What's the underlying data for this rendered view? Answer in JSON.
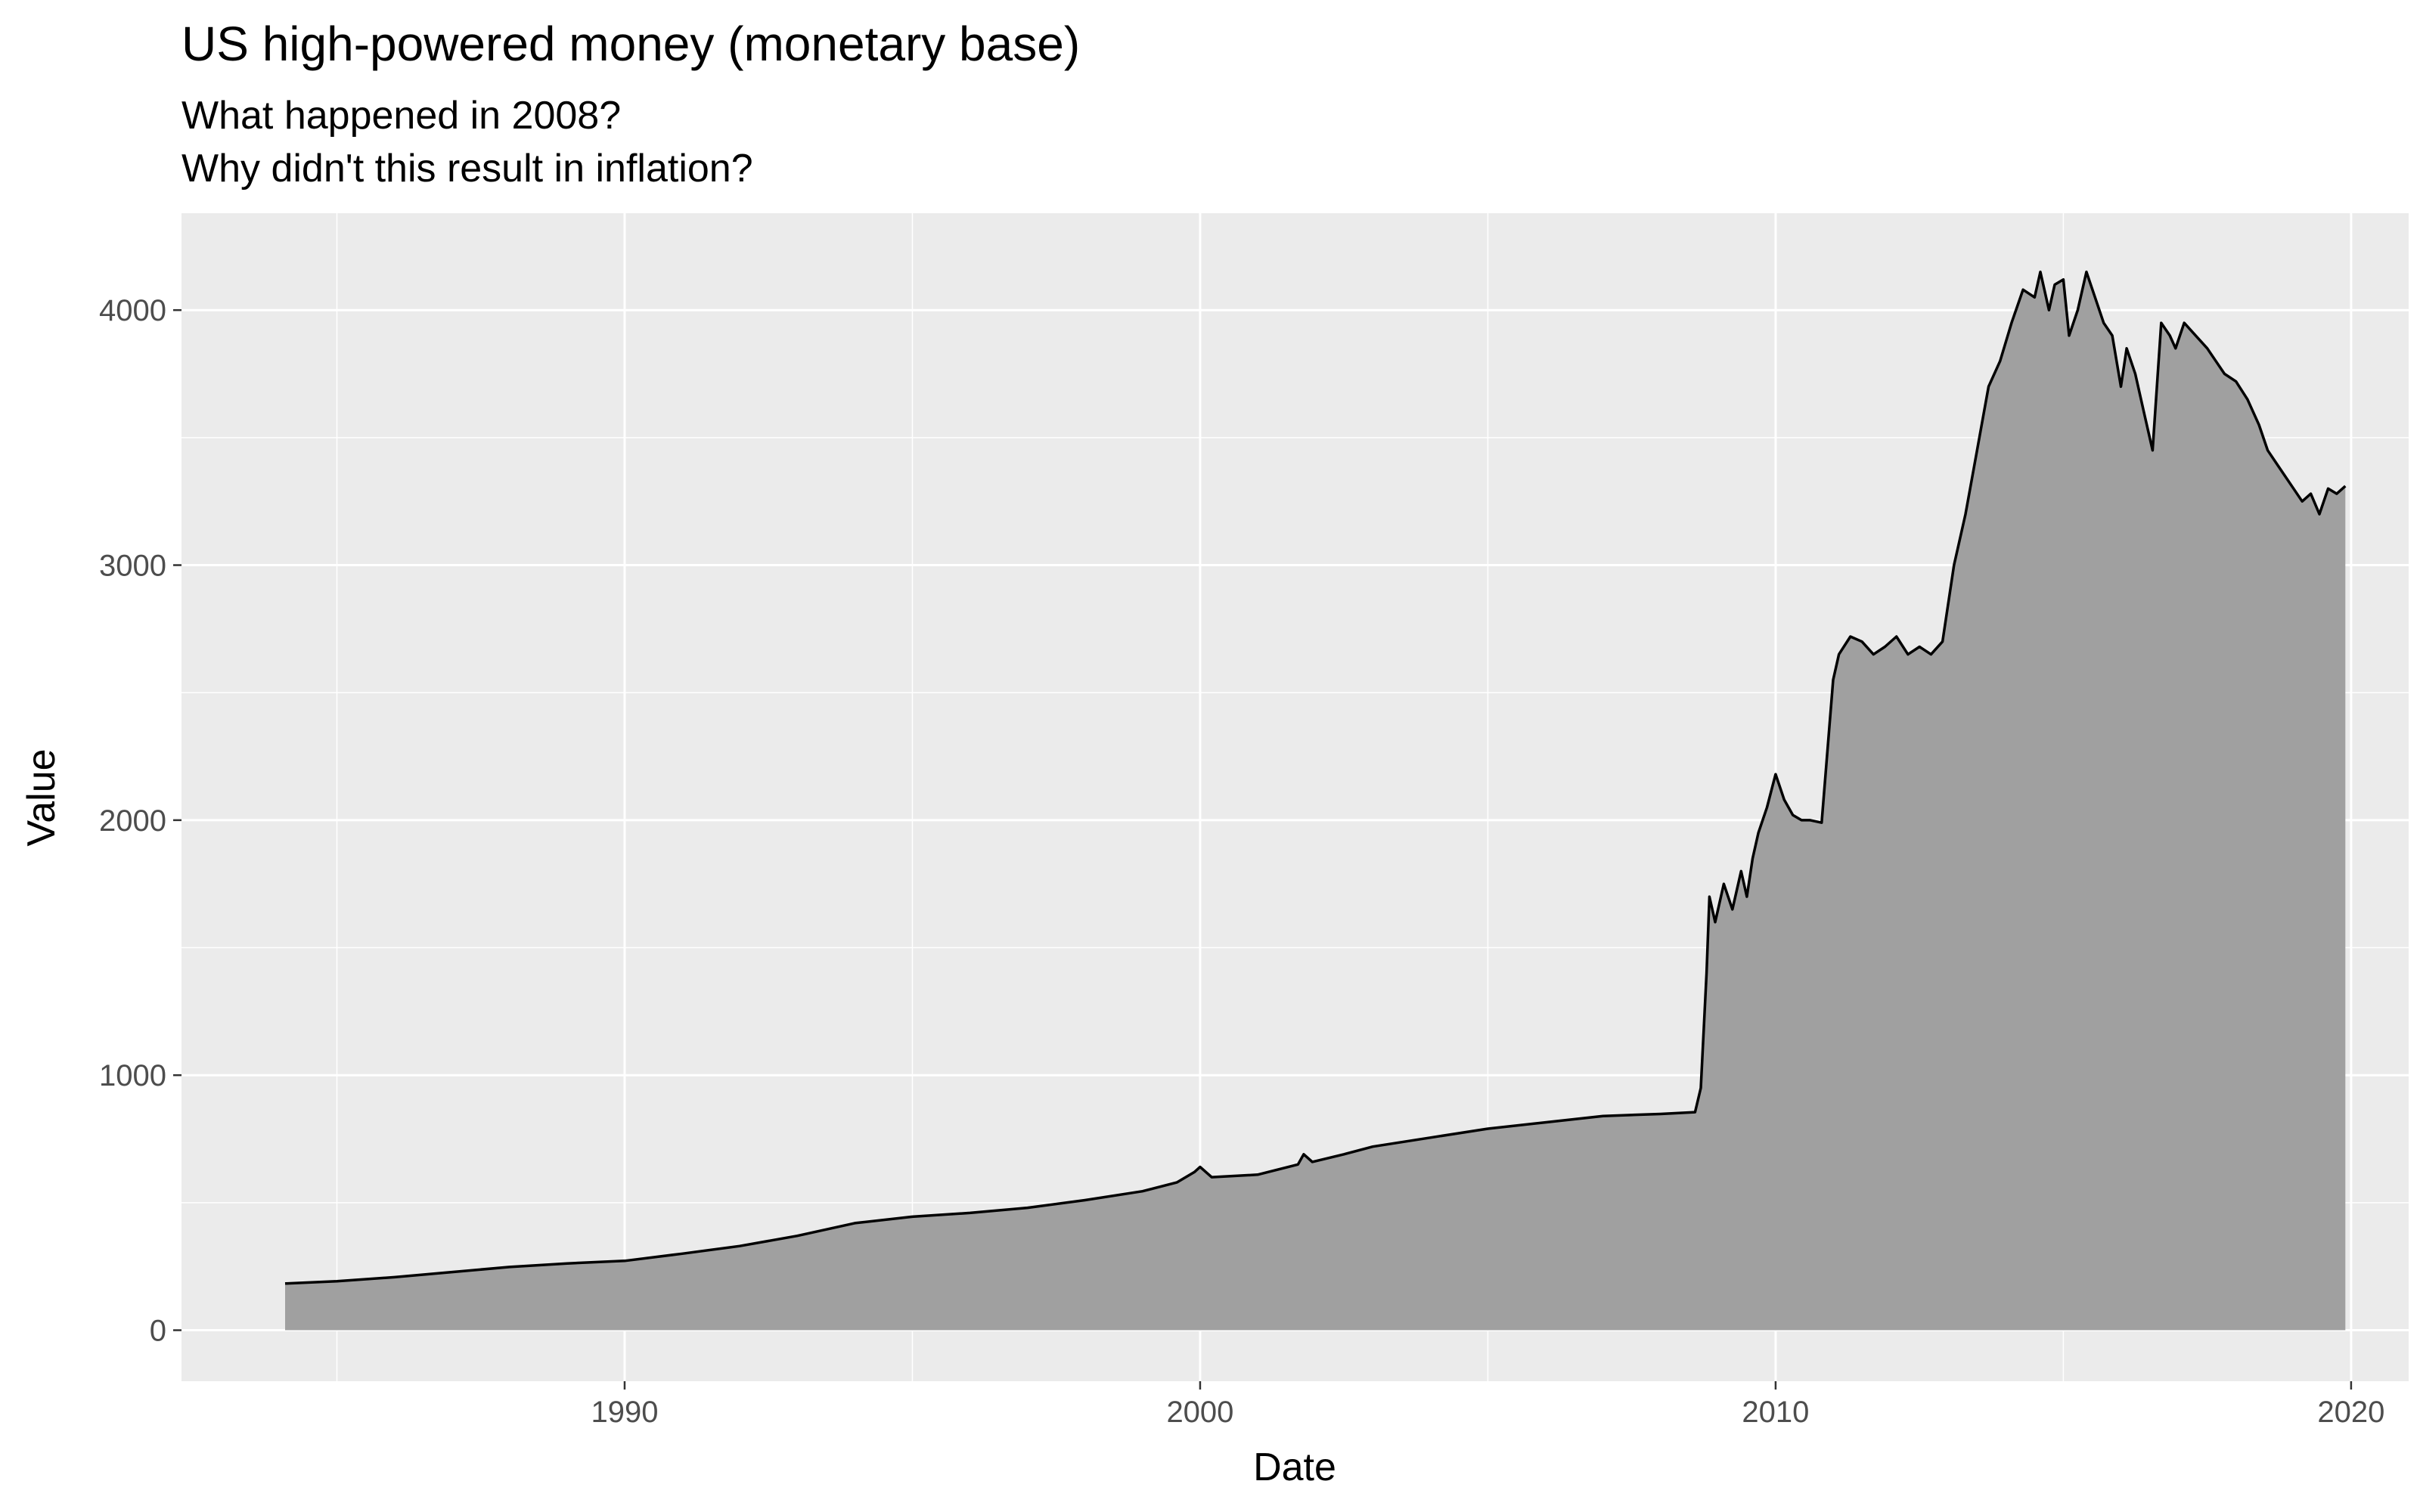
{
  "chart_data": {
    "type": "area",
    "title": "US high-powered money (monetary base)",
    "subtitle": [
      "What happened in 2008?",
      "Why didn't this result in inflation?"
    ],
    "xlabel": "Date",
    "ylabel": "Value",
    "xlim": [
      1982.3,
      2021.0
    ],
    "ylim": [
      -200,
      4380
    ],
    "x_ticks": [
      1990,
      2000,
      2010,
      2020
    ],
    "y_ticks": [
      0,
      1000,
      2000,
      3000,
      4000
    ],
    "grid": true,
    "colors": {
      "panel": "#ebebeb",
      "grid": "#ffffff",
      "fill": "#a0a0a0",
      "line": "#000000"
    },
    "series": [
      {
        "x": [
          1984.1,
          1985.0,
          1986.0,
          1987.0,
          1988.0,
          1989.0,
          1990.0,
          1991.0,
          1992.0,
          1993.0,
          1994.0,
          1995.0,
          1996.0,
          1997.0,
          1998.0,
          1999.0,
          1999.6,
          1999.9,
          2000.0,
          2000.2,
          2001.0,
          2001.7,
          2001.8,
          2001.95,
          2002.5,
          2003.0,
          2004.0,
          2005.0,
          2006.0,
          2007.0,
          2008.0,
          2008.6,
          2008.7,
          2008.8,
          2008.85,
          2008.95,
          2009.1,
          2009.25,
          2009.4,
          2009.5,
          2009.6,
          2009.7,
          2009.85,
          2010.0,
          2010.15,
          2010.3,
          2010.45,
          2010.6,
          2010.8,
          2011.0,
          2011.1,
          2011.3,
          2011.5,
          2011.7,
          2011.9,
          2012.1,
          2012.3,
          2012.5,
          2012.7,
          2012.9,
          2013.1,
          2013.3,
          2013.5,
          2013.7,
          2013.9,
          2014.1,
          2014.3,
          2014.5,
          2014.6,
          2014.75,
          2014.85,
          2015.0,
          2015.1,
          2015.25,
          2015.4,
          2015.55,
          2015.7,
          2015.85,
          2016.0,
          2016.1,
          2016.25,
          2016.4,
          2016.55,
          2016.7,
          2016.85,
          2016.95,
          2017.1,
          2017.3,
          2017.5,
          2017.65,
          2017.8,
          2018.0,
          2018.2,
          2018.4,
          2018.55,
          2018.7,
          2018.85,
          2019.0,
          2019.15,
          2019.3,
          2019.45,
          2019.6,
          2019.75,
          2019.9
        ],
        "y": [
          183,
          192,
          208,
          228,
          248,
          262,
          272,
          300,
          330,
          370,
          420,
          445,
          460,
          480,
          510,
          545,
          580,
          620,
          640,
          600,
          610,
          650,
          690,
          660,
          690,
          720,
          755,
          790,
          815,
          840,
          848,
          855,
          950,
          1400,
          1700,
          1600,
          1750,
          1650,
          1800,
          1700,
          1850,
          1950,
          2050,
          2180,
          2080,
          2020,
          2000,
          2000,
          1990,
          2550,
          2650,
          2720,
          2700,
          2650,
          2680,
          2720,
          2650,
          2680,
          2650,
          2700,
          3000,
          3200,
          3450,
          3700,
          3800,
          3950,
          4080,
          4050,
          4150,
          4000,
          4100,
          4120,
          3900,
          4000,
          4150,
          4050,
          3950,
          3900,
          3700,
          3850,
          3750,
          3600,
          3450,
          3950,
          3900,
          3850,
          3950,
          3900,
          3850,
          3800,
          3750,
          3720,
          3650,
          3550,
          3450,
          3400,
          3350,
          3300,
          3250,
          3280,
          3200,
          3300,
          3280,
          3310
        ]
      }
    ]
  }
}
